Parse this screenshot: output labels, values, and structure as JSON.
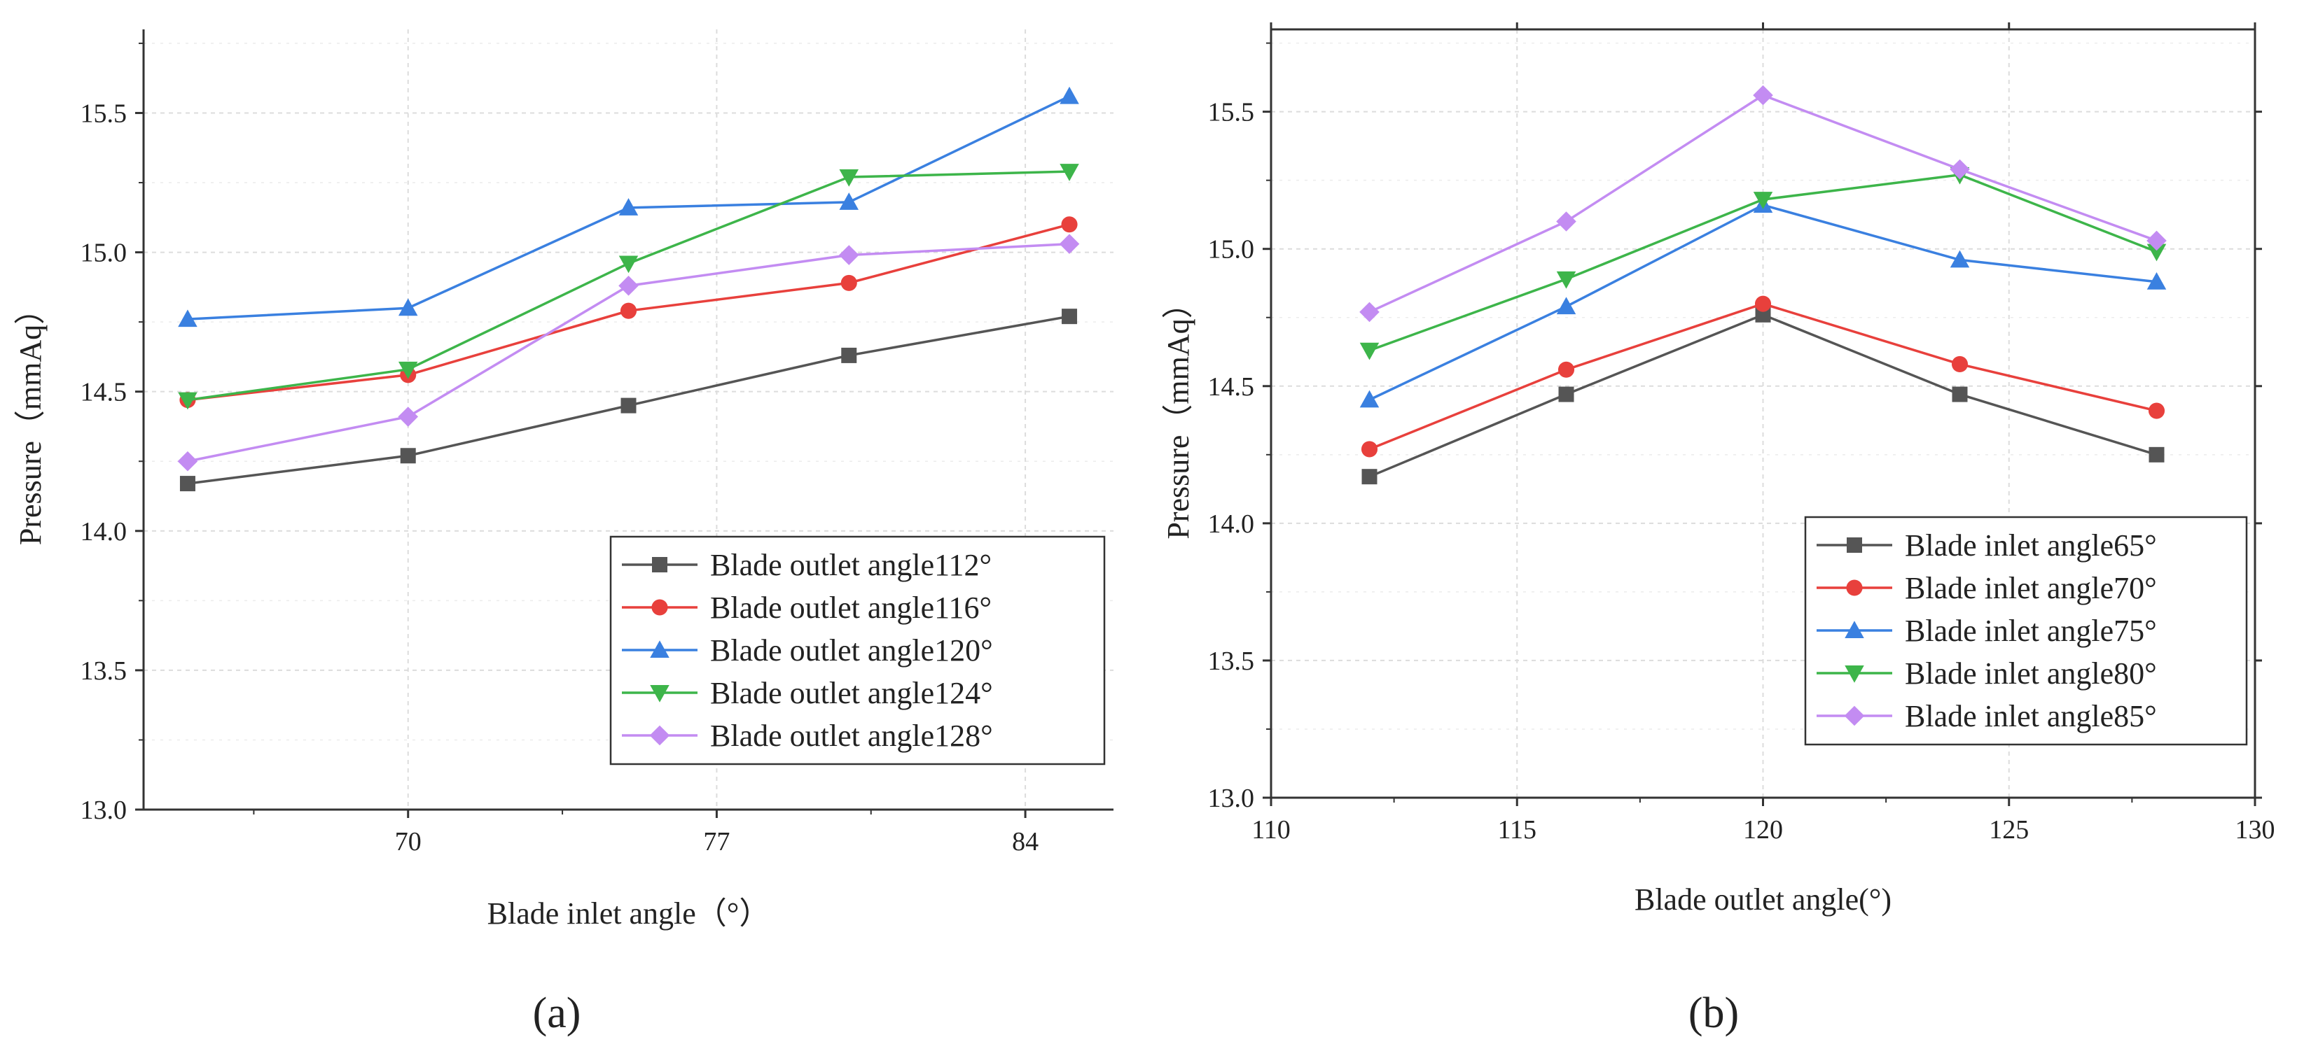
{
  "chart_data": [
    {
      "type": "line",
      "title": "",
      "panel_label": "(a)",
      "xlabel": "Blade inlet angle（°）",
      "ylabel": "Pressure（mmAq）",
      "x": [
        65,
        70,
        75,
        80,
        85
      ],
      "xlim": [
        64,
        86
      ],
      "xticks": [
        70,
        77,
        84
      ],
      "xtick_labels": [
        "70",
        "77",
        "84"
      ],
      "ylim": [
        13.0,
        15.8
      ],
      "yticks": [
        13.0,
        13.5,
        14.0,
        14.5,
        15.0,
        15.5
      ],
      "ytick_labels": [
        "13.0",
        "13.5",
        "14.0",
        "14.5",
        "15.0",
        "15.5"
      ],
      "grid": true,
      "legend_position": "bottom-right",
      "series": [
        {
          "name": "Blade outlet angle112°",
          "color": "#555555",
          "marker": "square",
          "values": [
            14.17,
            14.27,
            14.45,
            14.63,
            14.77
          ]
        },
        {
          "name": "Blade outlet angle116°",
          "color": "#e8403c",
          "marker": "circle",
          "values": [
            14.47,
            14.56,
            14.79,
            14.89,
            15.1
          ]
        },
        {
          "name": "Blade outlet angle120°",
          "color": "#3a80e0",
          "marker": "triangle-up",
          "values": [
            14.76,
            14.8,
            15.16,
            15.18,
            15.56
          ]
        },
        {
          "name": "Blade outlet angle124°",
          "color": "#3db54a",
          "marker": "triangle-down",
          "values": [
            14.47,
            14.58,
            14.96,
            15.27,
            15.29
          ]
        },
        {
          "name": "Blade outlet angle128°",
          "color": "#c38cf2",
          "marker": "diamond",
          "values": [
            14.25,
            14.41,
            14.88,
            14.99,
            15.03
          ]
        }
      ]
    },
    {
      "type": "line",
      "title": "",
      "panel_label": "(b)",
      "xlabel": "Blade outlet angle(°)",
      "ylabel": "Pressure（mmAq）",
      "x": [
        112,
        116,
        120,
        124,
        128
      ],
      "xlim": [
        110,
        130
      ],
      "xticks": [
        110,
        115,
        120,
        125,
        130
      ],
      "xtick_labels": [
        "110",
        "115",
        "120",
        "125",
        "130"
      ],
      "ylim": [
        13.0,
        15.8
      ],
      "yticks": [
        13.0,
        13.5,
        14.0,
        14.5,
        15.0,
        15.5
      ],
      "ytick_labels": [
        "13.0",
        "13.5",
        "14.0",
        "14.5",
        "15.0",
        "15.5"
      ],
      "grid": true,
      "legend_position": "bottom-right",
      "series": [
        {
          "name": "Blade inlet angle65°",
          "color": "#555555",
          "marker": "square",
          "values": [
            14.17,
            14.47,
            14.76,
            14.47,
            14.25
          ]
        },
        {
          "name": "Blade inlet angle70°",
          "color": "#e8403c",
          "marker": "circle",
          "values": [
            14.27,
            14.56,
            14.8,
            14.58,
            14.41
          ]
        },
        {
          "name": "Blade inlet angle75°",
          "color": "#3a80e0",
          "marker": "triangle-up",
          "values": [
            14.45,
            14.79,
            15.16,
            14.96,
            14.88
          ]
        },
        {
          "name": "Blade inlet angle80°",
          "color": "#3db54a",
          "marker": "triangle-down",
          "values": [
            14.63,
            14.89,
            15.18,
            15.27,
            14.99
          ]
        },
        {
          "name": "Blade inlet angle85°",
          "color": "#c38cf2",
          "marker": "diamond",
          "values": [
            14.77,
            15.1,
            15.56,
            15.29,
            15.03
          ]
        }
      ]
    }
  ]
}
